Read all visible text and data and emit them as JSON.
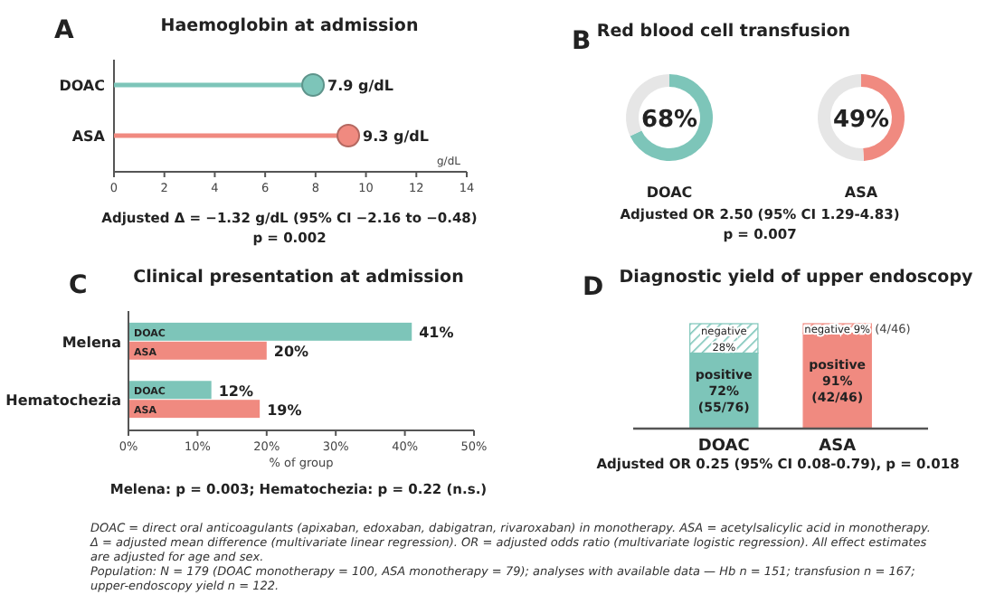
{
  "chart_data": [
    {
      "type": "lollipop",
      "title": "Haemoglobin at admission",
      "orientation": "horizontal",
      "categories": [
        "DOAC",
        "ASA"
      ],
      "values": [
        7.9,
        9.3
      ],
      "colors": [
        "#7dc5b9",
        "#f08a80"
      ],
      "value_labels": [
        "7.9 g/dL",
        "9.3 g/dL"
      ],
      "xlabel": "g/dL",
      "xlim": [
        0,
        14
      ],
      "xticks": [
        0,
        2,
        4,
        6,
        8,
        10,
        12,
        14
      ],
      "marker": "circle",
      "annotations": [
        "A",
        "Adjusted Δ = −1.32 g/dL (95% CI −2.16 to −0.48)",
        "p = 0.002"
      ]
    },
    {
      "type": "donut",
      "title": "Red blood cell transfusion",
      "categories": [
        null,
        null
      ],
      "series": [
        {
          "name": "DOAC",
          "values": [
            68,
            32
          ],
          "colors": [
            "#7dc5b9",
            "#e6e6e6"
          ],
          "value_labels": [
            "68%",
            null
          ]
        },
        {
          "name": "ASA",
          "values": [
            49,
            51
          ],
          "colors": [
            "#f08a80",
            "#e6e6e6"
          ],
          "value_labels": [
            "49%",
            null
          ]
        }
      ],
      "annotations": [
        "B",
        "Adjusted OR 2.50 (95% CI 1.29-4.83)",
        "p = 0.007"
      ]
    },
    {
      "type": "bar",
      "title": "Clinical presentation at admission",
      "orientation": "horizontal",
      "categories": [
        "Melena",
        "Hematochezia"
      ],
      "series": [
        {
          "name": "DOAC",
          "color": "#7dc5b9",
          "values": [
            41,
            12
          ],
          "value_labels": [
            "41%",
            "12%"
          ]
        },
        {
          "name": "ASA",
          "color": "#f08a80",
          "values": [
            20,
            19
          ],
          "value_labels": [
            "20%",
            "19%"
          ]
        }
      ],
      "xlabel": "% of group",
      "xlim": [
        0,
        50
      ],
      "xticks": [
        {
          "value": 0,
          "label": "0%"
        },
        {
          "value": 10,
          "label": "10%"
        },
        {
          "value": 20,
          "label": "20%"
        },
        {
          "value": 30,
          "label": "30%"
        },
        {
          "value": 40,
          "label": "40%"
        },
        {
          "value": 50,
          "label": "50%"
        }
      ],
      "annotations": [
        "C",
        "Melena: p = 0.003; Hematochezia: p = 0.22 (n.s.)"
      ]
    },
    {
      "type": "bar",
      "title": "Diagnostic yield of upper endoscopy",
      "stacked": true,
      "categories": [
        "DOAC",
        "ASA"
      ],
      "series": [
        {
          "colors": [
            "#7dc5b9",
            "#f08a80"
          ],
          "values": [
            72,
            91
          ],
          "value_labels": [
            "positive\n72%\n(55/76)",
            "positive\n91%\n(42/46)"
          ]
        },
        {
          "colors": [
            "#7dc5b9",
            "#f08a80"
          ],
          "values": [
            28,
            9
          ],
          "value_labels": [
            "negative\n28%",
            "negative 9%"
          ]
        }
      ],
      "annotations": [
        "D",
        "(4/46)",
        "Adjusted OR 0.25 (95% CI 0.08-0.79), p = 0.018"
      ]
    },
    {
      "type": "other",
      "annotations": [
        "DOAC = direct oral anticoagulants (apixaban, edoxaban, dabigatran, rivaroxaban) in monotherapy. ASA = acetylsalicylic acid in monotherapy. Δ = adjusted mean difference (multivariate linear regression). OR = adjusted odds ratio (multivariate logistic regression). All effect estimates are adjusted for age and sex.",
        "Population: N = 179 (DOAC monotherapy = 100, ASA monotherapy = 79); analyses with available data — Hb n = 151; transfusion n = 167; upper-endoscopy yield n = 122."
      ]
    }
  ]
}
